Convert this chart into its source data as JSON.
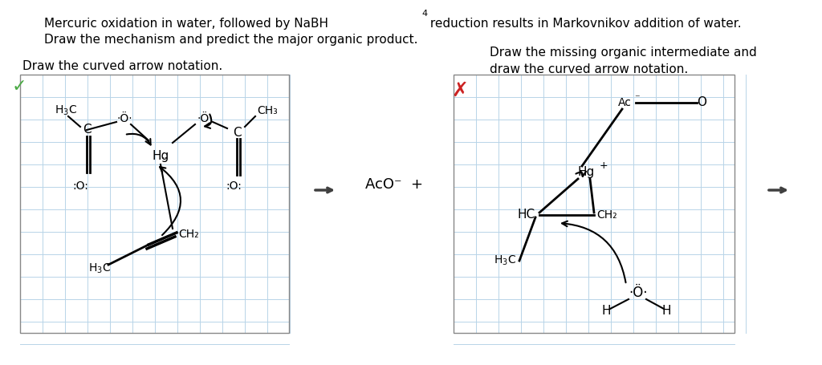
{
  "title_line1": "Mercuric oxidation in water, followed by NaBH",
  "title_sub4": "4",
  "title_line1_end": " reduction results in Markovnikov addition of water.",
  "title_line2": "Draw the mechanism and predict the major organic product.",
  "bg_color": "#ffffff",
  "grid_color": "#b8d4e8",
  "panel1_label": "Draw the curved arrow notation.",
  "panel2_label": "Draw the missing organic intermediate and\ndraw the curved arrow notation.",
  "arrow_color": "#404040",
  "check_color": "#4aaa44",
  "x_color": "#cc2222",
  "text_color": "#000000",
  "bond_color": "#000000"
}
